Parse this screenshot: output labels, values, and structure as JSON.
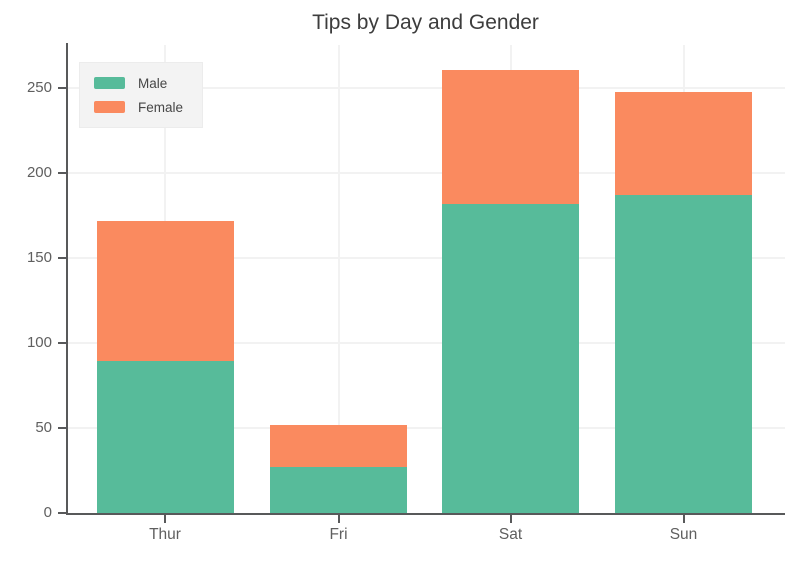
{
  "chart_data": {
    "type": "bar",
    "stacked": true,
    "title": "Tips by Day and Gender",
    "categories": [
      "Thur",
      "Fri",
      "Sat",
      "Sun"
    ],
    "series": [
      {
        "name": "Male",
        "color": "#57bb9a",
        "values": [
          89.41,
          26.93,
          181.95,
          186.78
        ]
      },
      {
        "name": "Female",
        "color": "#fa8a5f",
        "values": [
          82.42,
          25.03,
          78.45,
          60.61
        ]
      }
    ],
    "xlabel": "",
    "ylabel": "",
    "ylim": [
      0,
      275
    ],
    "yticks": [
      0,
      50,
      100,
      150,
      200,
      250
    ],
    "grid": true,
    "legend_position": "top-left"
  },
  "colors": {
    "male": "#57bb9a",
    "female": "#fa8a5f",
    "axis": "#58595a",
    "grid": "#f2f2f2",
    "title_text": "#3d3d3d",
    "tick_text": "#5f5f5f",
    "legend_background": "#f3f3f3",
    "page_background": "#ffffff"
  }
}
